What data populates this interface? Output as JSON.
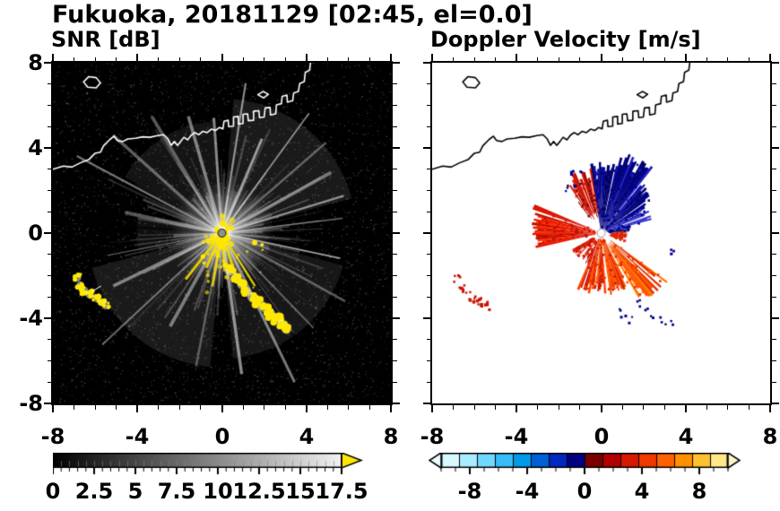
{
  "title": "Fukuoka, 20181129 [02:45, el=0.0]",
  "panels": {
    "snr": {
      "label": "SNR [dB]"
    },
    "velocity": {
      "label": "Doppler Velocity [m/s]"
    }
  },
  "axes": {
    "xlim": [
      -8,
      8
    ],
    "ylim": [
      -8,
      8
    ],
    "xticks": [
      "-8",
      "-4",
      "0",
      "4",
      "8"
    ],
    "yticks": [
      "8",
      "4",
      "0",
      "-4",
      "-8"
    ]
  },
  "colorbars": {
    "snr": {
      "min": 0,
      "max": 17.5,
      "labels": [
        "0",
        "2.5",
        "5",
        "7.5",
        "10",
        "12.5",
        "15",
        "17.5"
      ],
      "colormap": "black-to-white",
      "over_color": "#ffe800"
    },
    "velocity": {
      "min": -10,
      "max": 10,
      "labels": [
        "-8",
        "-4",
        "0",
        "4",
        "8"
      ],
      "colors": [
        "#d8f8ff",
        "#a8ecff",
        "#70d8ff",
        "#38bcf8",
        "#009ae8",
        "#0060d8",
        "#0028c0",
        "#000080",
        "#7a0000",
        "#b00000",
        "#d81800",
        "#f03800",
        "#ff6000",
        "#ff9000",
        "#ffc030",
        "#ffe888"
      ],
      "under_color": "#eafcff",
      "over_color": "#fff7c8"
    }
  },
  "coastline": {
    "main": [
      [
        -8.0,
        3.0
      ],
      [
        -7.5,
        3.15
      ],
      [
        -7.1,
        3.1
      ],
      [
        -6.7,
        3.3
      ],
      [
        -6.3,
        3.45
      ],
      [
        -6.0,
        3.75
      ],
      [
        -5.75,
        3.8
      ],
      [
        -5.6,
        4.1
      ],
      [
        -5.3,
        4.4
      ],
      [
        -5.1,
        4.55
      ],
      [
        -4.95,
        4.35
      ],
      [
        -4.7,
        4.3
      ],
      [
        -4.45,
        4.42
      ],
      [
        -4.1,
        4.45
      ],
      [
        -3.75,
        4.52
      ],
      [
        -3.4,
        4.5
      ],
      [
        -3.05,
        4.58
      ],
      [
        -2.75,
        4.62
      ],
      [
        -2.55,
        4.42
      ],
      [
        -2.4,
        4.12
      ],
      [
        -2.25,
        4.3
      ],
      [
        -2.1,
        4.12
      ],
      [
        -1.95,
        4.3
      ],
      [
        -1.8,
        4.5
      ],
      [
        -1.62,
        4.38
      ],
      [
        -1.45,
        4.6
      ],
      [
        -1.28,
        4.72
      ],
      [
        -1.1,
        4.62
      ],
      [
        -0.9,
        4.78
      ],
      [
        -0.7,
        4.72
      ],
      [
        -0.5,
        4.88
      ],
      [
        -0.3,
        4.82
      ],
      [
        -0.12,
        4.96
      ],
      [
        0.05,
        4.9
      ],
      [
        0.1,
        5.25
      ],
      [
        0.3,
        5.3
      ],
      [
        0.32,
        5.0
      ],
      [
        0.55,
        5.02
      ],
      [
        0.55,
        5.45
      ],
      [
        0.78,
        5.48
      ],
      [
        0.78,
        5.12
      ],
      [
        1.0,
        5.15
      ],
      [
        1.0,
        5.58
      ],
      [
        1.22,
        5.6
      ],
      [
        1.25,
        5.28
      ],
      [
        1.5,
        5.3
      ],
      [
        1.5,
        5.72
      ],
      [
        1.75,
        5.75
      ],
      [
        1.78,
        5.42
      ],
      [
        2.0,
        5.45
      ],
      [
        2.05,
        5.88
      ],
      [
        2.28,
        5.9
      ],
      [
        2.3,
        5.55
      ],
      [
        2.55,
        5.6
      ],
      [
        2.58,
        6.02
      ],
      [
        2.82,
        6.08
      ],
      [
        2.85,
        6.42
      ],
      [
        3.08,
        6.48
      ],
      [
        3.1,
        6.15
      ],
      [
        3.35,
        6.22
      ],
      [
        3.4,
        6.58
      ],
      [
        3.62,
        6.65
      ],
      [
        3.68,
        7.02
      ],
      [
        3.9,
        7.12
      ],
      [
        3.95,
        7.55
      ],
      [
        4.15,
        7.65
      ],
      [
        4.2,
        8.05
      ]
    ],
    "islands": [
      [
        [
          -6.55,
          7.1
        ],
        [
          -6.3,
          7.35
        ],
        [
          -5.95,
          7.3
        ],
        [
          -5.75,
          7.05
        ],
        [
          -5.95,
          6.82
        ],
        [
          -6.35,
          6.85
        ]
      ],
      [
        [
          1.7,
          6.5
        ],
        [
          1.95,
          6.65
        ],
        [
          2.2,
          6.52
        ],
        [
          1.98,
          6.35
        ]
      ]
    ]
  },
  "chart_data": [
    {
      "type": "heatmap",
      "title": "SNR [dB]",
      "xlim": [
        -8,
        8
      ],
      "ylim": [
        -8,
        8
      ],
      "xticks": [
        -8,
        -4,
        0,
        4,
        8
      ],
      "yticks": [
        -8,
        -4,
        0,
        4,
        8
      ],
      "background": "#000000",
      "colorbar": {
        "min": 0,
        "max": 17.5,
        "ticks": [
          0,
          2.5,
          5,
          7.5,
          10,
          12.5,
          15,
          17.5
        ],
        "colormap": "black-to-white",
        "over_color": "#ffe800"
      },
      "notes": "Radar at origin; white interference spikes radiate in all directions from center over speckled black background. High-SNR (yellow, >17.5 dB) echo at center extending south, a yellow echo arc running SE from (0.4,-1.8) to (3.1,-4.5), and a short yellow chain in the far WSW near (-6.8,-2.1)..(-5.5,-3.4). White Hakata Bay coastline overlay across the north.",
      "features": {
        "radar_center": [
          0,
          0
        ],
        "noise": {
          "count": 6500,
          "max_alpha": 0.32
        },
        "glow_wedges": [
          {
            "a0": -85,
            "a1": -15,
            "r": 150,
            "alpha": 0.1
          },
          {
            "a0": -150,
            "a1": -95,
            "r": 125,
            "alpha": 0.08
          },
          {
            "a0": 15,
            "a1": 85,
            "r": 140,
            "alpha": 0.09
          },
          {
            "a0": 95,
            "a1": 165,
            "r": 150,
            "alpha": 0.1
          },
          {
            "a0": 168,
            "a1": 192,
            "r": 95,
            "alpha": 0.06
          }
        ],
        "random_rays": {
          "count": 150,
          "min_len": 40,
          "max_len": 175
        },
        "bright_rays": [
          -168,
          -152,
          -138,
          -121,
          -106,
          -94,
          -81,
          -67,
          -54,
          -41,
          -29,
          -17,
          -7,
          12,
          29,
          46,
          64,
          82,
          101,
          119,
          137,
          154,
          169
        ],
        "black_rays": [
          {
            "a": -176,
            "len": 170
          },
          {
            "a": 55,
            "len": 150
          }
        ],
        "yellow_rays": [
          58,
          72,
          86,
          100,
          114,
          128,
          -28,
          -44
        ],
        "yellow_arc_se": [
          [
            0.4,
            -1.75
          ],
          [
            0.7,
            -2.1
          ],
          [
            0.95,
            -2.4
          ],
          [
            1.15,
            -2.75
          ],
          [
            1.45,
            -3.0
          ],
          [
            1.75,
            -3.2
          ],
          [
            2.05,
            -3.5
          ],
          [
            2.3,
            -3.8
          ],
          [
            2.6,
            -4.05
          ],
          [
            2.85,
            -4.3
          ],
          [
            3.05,
            -4.5
          ]
        ],
        "yellow_chain_west": [
          [
            -6.85,
            -2.1
          ],
          [
            -6.7,
            -2.45
          ],
          [
            -6.5,
            -2.7
          ],
          [
            -6.25,
            -2.9
          ],
          [
            -5.95,
            -3.05
          ],
          [
            -5.7,
            -3.25
          ],
          [
            -5.5,
            -3.4
          ]
        ],
        "yellow_spots": [
          [
            1.55,
            -0.45
          ],
          [
            1.9,
            -0.55
          ],
          [
            -0.9,
            -1.1
          ],
          [
            0.15,
            -1.5
          ]
        ],
        "center_dot_color": "#8f8f8f"
      }
    },
    {
      "type": "heatmap",
      "title": "Doppler Velocity [m/s]",
      "xlim": [
        -8,
        8
      ],
      "ylim": [
        -8,
        8
      ],
      "xticks": [
        -8,
        -4,
        0,
        4,
        8
      ],
      "yticks": [
        -8,
        -4,
        0,
        4,
        8
      ],
      "background": "#ffffff",
      "colorbar": {
        "min": -10,
        "max": 10,
        "ticks": [
          -8,
          -4,
          0,
          4,
          8
        ],
        "colormap": "cyan-blue-navy-red-orange-yellow"
      },
      "notes": "Negative velocities (dark blue/navy, toward radar) form a fan N to NE of the radar out to ~4 km-units; positive velocities (red/orange, away) form a broad wedge to the W, fans S and SE, a thin ray to the WNW, mixed red patch NW, blue speckles along the SE outer edge, and a scattered red echo chain far WSW. Black coastline overlay.",
      "features": {
        "radar_center": [
          0,
          0
        ],
        "sectors": [
          {
            "a0": -99,
            "a1": -76,
            "r0": 0.25,
            "r1": 3.35,
            "colors": [
              "#000080",
              "#00006b",
              "#0a0aa0"
            ],
            "gap": 0.05,
            "jag": 0.3
          },
          {
            "a0": -76,
            "a1": -53,
            "r0": 0.25,
            "r1": 3.95,
            "colors": [
              "#000075",
              "#000090",
              "#2020c0"
            ],
            "gap": 0.05,
            "jag": 0.35
          },
          {
            "a0": -53,
            "a1": -33,
            "r0": 0.3,
            "r1": 3.15,
            "colors": [
              "#000088",
              "#1111aa",
              "#000070"
            ],
            "gap": 0.08,
            "jag": 0.35
          },
          {
            "a0": -33,
            "a1": -14,
            "r0": 0.3,
            "r1": 2.5,
            "colors": [
              "#000090",
              "#3333cc"
            ],
            "gap": 0.15,
            "jag": 0.4
          },
          {
            "a0": -14,
            "a1": -4,
            "r0": 0.4,
            "r1": 1.5,
            "colors": [
              "#000080"
            ],
            "gap": 0.35,
            "jag": 0.5
          },
          {
            "a0": -127,
            "a1": -99,
            "r0": 0.9,
            "r1": 3.1,
            "colors": [
              "#cc1100",
              "#e02200",
              "#8b0000"
            ],
            "gap": 0.25,
            "jag": 0.45
          },
          {
            "a0": -161,
            "a1": -158,
            "r0": 0.4,
            "r1": 3.45,
            "colors": [
              "#dd1100"
            ],
            "gap": 0.0,
            "jag": 0.05
          },
          {
            "a0": 167,
            "a1": 196,
            "r0": 0.3,
            "r1": 3.3,
            "colors": [
              "#e81500",
              "#c00d00",
              "#ff3300"
            ],
            "gap": 0.03,
            "jag": 0.18
          },
          {
            "a0": 63,
            "a1": 112,
            "r0": 0.3,
            "r1": 2.95,
            "colors": [
              "#e63000",
              "#ff4400",
              "#cc1500",
              "#ff5500"
            ],
            "gap": 0.06,
            "jag": 0.3
          },
          {
            "a0": 36,
            "a1": 63,
            "r0": 0.7,
            "r1": 3.9,
            "colors": [
              "#ff5500",
              "#e33000",
              "#ff7700"
            ],
            "gap": 0.22,
            "jag": 0.45
          },
          {
            "a0": -4,
            "a1": 20,
            "r0": 0.5,
            "r1": 1.25,
            "colors": [
              "#dd2200"
            ],
            "gap": 0.55,
            "jag": 0.5
          },
          {
            "a0": 112,
            "a1": 150,
            "r0": 0.4,
            "r1": 1.6,
            "colors": [
              "#e02200",
              "#cc1100"
            ],
            "gap": 0.5,
            "jag": 0.5
          }
        ],
        "blue_speckles": [
          [
            -1.1,
            2.4
          ],
          [
            -1.35,
            2.8
          ],
          [
            -0.9,
            3.0
          ],
          [
            -1.6,
            2.2
          ],
          [
            1.75,
            -3.25
          ],
          [
            2.15,
            -3.55
          ],
          [
            2.5,
            -3.8
          ],
          [
            2.85,
            -4.0
          ],
          [
            3.15,
            -4.15
          ],
          [
            1.3,
            -4.0
          ],
          [
            0.95,
            -3.7
          ],
          [
            3.3,
            -0.9
          ]
        ],
        "red_chain_west": [
          [
            -6.85,
            -2.1
          ],
          [
            -6.65,
            -2.5
          ],
          [
            -6.4,
            -2.8
          ],
          [
            -6.1,
            -3.0
          ],
          [
            -5.8,
            -3.2
          ],
          [
            -5.55,
            -3.35
          ]
        ]
      }
    }
  ]
}
